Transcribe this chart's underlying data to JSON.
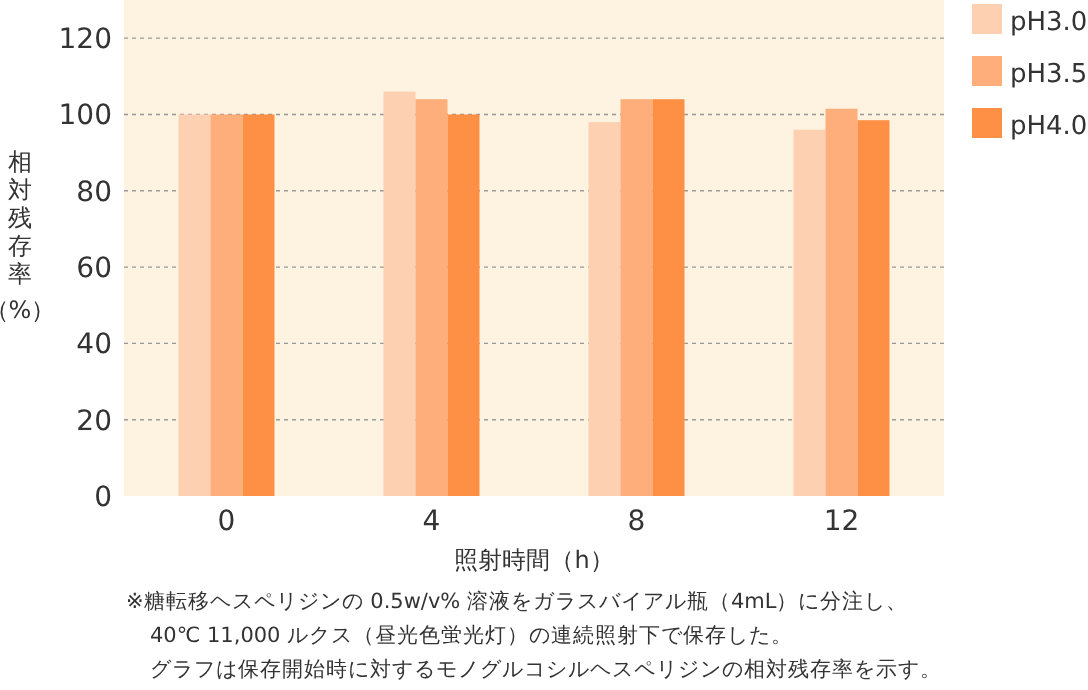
{
  "chart_data": {
    "type": "bar",
    "xlabel": "照射時間（h）",
    "ylabel": "相対残存率（%）",
    "categories": [
      "0",
      "4",
      "8",
      "12"
    ],
    "series": [
      {
        "name": "pH3.0",
        "color": "#fdd0b1",
        "values": [
          100,
          106,
          98,
          96
        ]
      },
      {
        "name": "pH3.5",
        "color": "#fdae7b",
        "values": [
          100,
          104,
          104,
          101.5
        ]
      },
      {
        "name": "pH4.0",
        "color": "#fe9045",
        "values": [
          100,
          100,
          104,
          98.5
        ]
      }
    ],
    "ylim": [
      0,
      130
    ],
    "yticks": [
      0,
      20,
      40,
      60,
      80,
      100,
      120
    ],
    "grid": "y",
    "legend": "right",
    "annotations": [
      "※糖転移ヘスペリジンの 0.5w/v% 溶液をガラスバイアル瓶（4mL）に分注し、",
      "40℃ 11,000 ルクス（昼光色蛍光灯）の連続照射下で保存した。",
      "グラフは保存開始時に対するモノグルコシルヘスペリジンの相対残存率を示す。"
    ]
  }
}
